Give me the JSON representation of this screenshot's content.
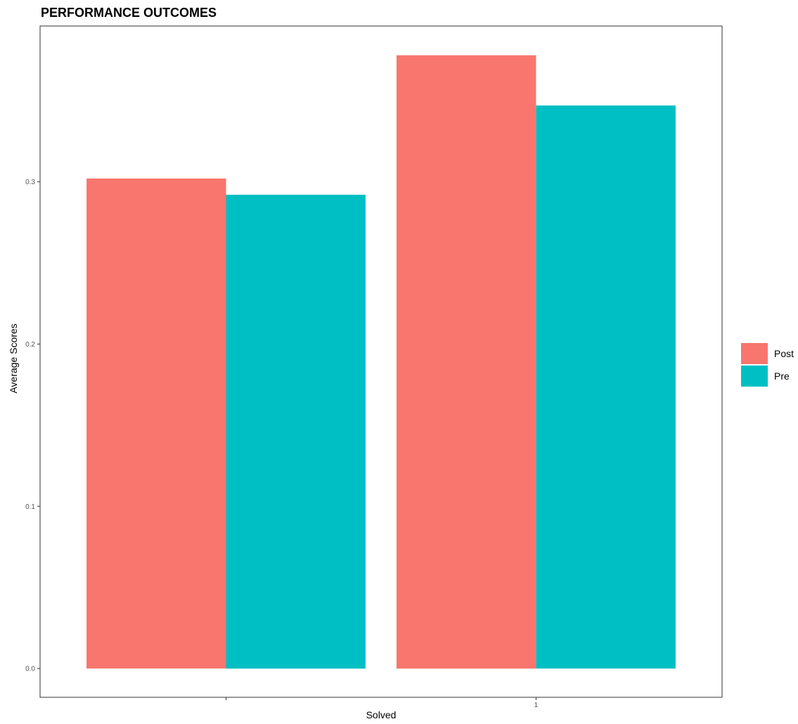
{
  "chart_data": {
    "type": "bar",
    "title": "PERFORMANCE OUTCOMES",
    "xlabel": "Solved",
    "ylabel": "Average Scores",
    "categories": [
      "",
      "1"
    ],
    "series": [
      {
        "name": "Post",
        "values": [
          0.302,
          0.378
        ],
        "color": "#F8766D"
      },
      {
        "name": "Pre",
        "values": [
          0.292,
          0.347
        ],
        "color": "#00BFC4"
      }
    ],
    "ylim": [
      -0.0177,
      0.396
    ],
    "yticks": [
      0.0,
      0.1,
      0.2,
      0.3
    ],
    "ytick_labels": [
      "0.0",
      "0.1",
      "0.2",
      "0.3"
    ],
    "grid": false,
    "legend_position": "right"
  }
}
